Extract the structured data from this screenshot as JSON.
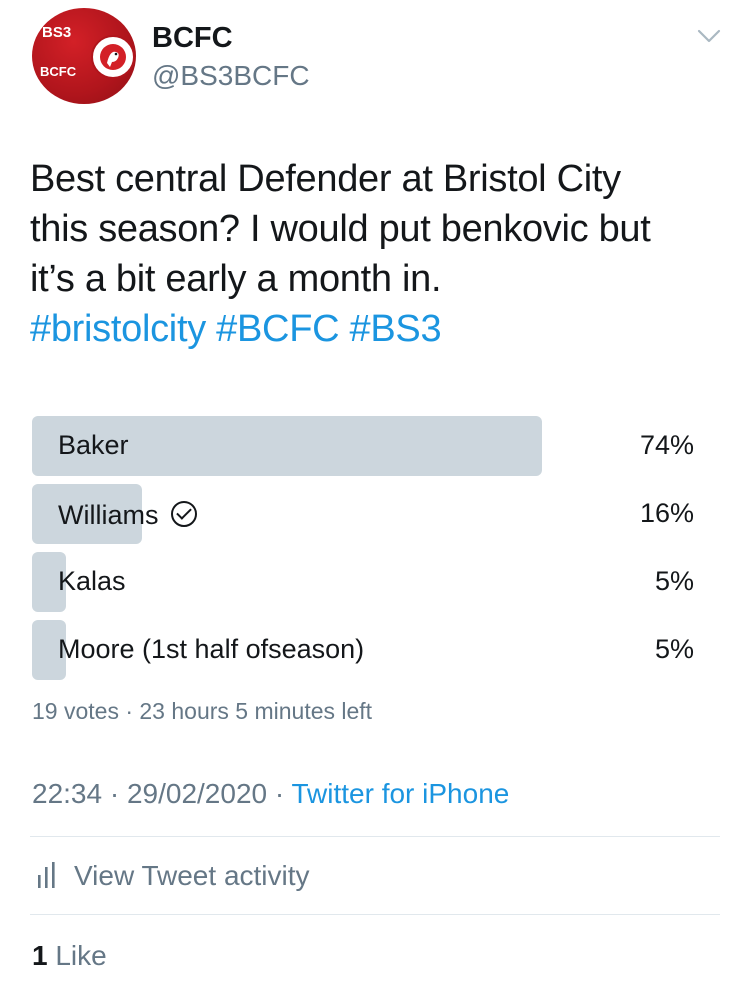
{
  "user": {
    "display_name": "BCFC",
    "handle": "@BS3BCFC",
    "avatar_text_top": "BS3",
    "avatar_text_bottom": "BCFC"
  },
  "tweet": {
    "text_lines": [
      "Best central Defender at Bristol City",
      "this season? I would put benkovic but",
      "it’s a bit early a month in."
    ],
    "hashtags": [
      "#bristolcity",
      "#BCFC",
      "#BS3"
    ]
  },
  "poll": {
    "options": [
      {
        "label": "Baker",
        "percent": "74%",
        "fill_fraction": 0.77
      },
      {
        "label": "Williams",
        "percent": "16%",
        "fill_fraction": 0.166,
        "selected": true
      },
      {
        "label": "Kalas",
        "percent": "5%",
        "fill_fraction": 0.052
      },
      {
        "label": "Moore (1st half ofseason)",
        "percent": "5%",
        "fill_fraction": 0.052
      }
    ],
    "meta": "19 votes · 23 hours 5 minutes left"
  },
  "timestamp": {
    "time_date": "22:34 · 29/02/2020 · ",
    "source": "Twitter for iPhone"
  },
  "actions": {
    "view_activity": "View Tweet activity"
  },
  "stats": {
    "like_count": "1",
    "like_label": " Like"
  },
  "colors": {
    "link": "#1b95e0",
    "secondary_text": "#657786",
    "poll_bar": "#ccd6dd",
    "avatar_red": "#d32027"
  },
  "icons": {
    "chevron": "chevron-down-icon",
    "check": "check-circle-icon",
    "activity": "bar-chart-icon"
  }
}
